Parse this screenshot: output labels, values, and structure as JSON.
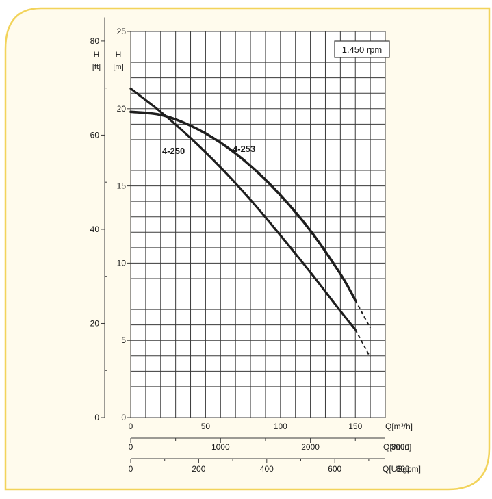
{
  "colors": {
    "frame_border": "#f2d35a",
    "frame_fill": "#fffbed",
    "plot_bg": "#ffffff",
    "grid": "#3a3a3a",
    "curve": "#1e1e1e",
    "text": "#1a1a1a"
  },
  "chart_data": {
    "type": "line",
    "speed_label": "1.450 rpm",
    "y_axis_m": {
      "label": "H",
      "unit": "[m]",
      "ylim": [
        0,
        25
      ],
      "ticks": [
        0,
        5,
        10,
        15,
        20,
        25
      ]
    },
    "y_axis_ft": {
      "label": "H",
      "unit": "[ft]",
      "ticks": [
        0,
        20,
        40,
        60,
        80
      ]
    },
    "x_axis_m3h": {
      "unit": "Q[m³/h]",
      "xlim": [
        0,
        170
      ],
      "ticks": [
        0,
        50,
        100,
        150
      ]
    },
    "x_axis_lmin": {
      "unit": "Q[l/min]",
      "ticks": [
        0,
        1000,
        2000,
        3000
      ]
    },
    "x_axis_usgpm": {
      "unit": "Q[USgpm]",
      "ticks": [
        0,
        200,
        400,
        600,
        800
      ]
    },
    "grid": true,
    "series": [
      {
        "name": "4-250",
        "x": [
          0,
          20,
          40,
          60,
          80,
          100,
          120,
          140,
          150
        ],
        "y": [
          21.3,
          19.8,
          18.1,
          16.2,
          14.1,
          11.8,
          9.4,
          6.9,
          5.7
        ],
        "extension_x": [
          150,
          160
        ],
        "extension_y": [
          5.7,
          3.9
        ]
      },
      {
        "name": "4-253",
        "x": [
          0,
          20,
          40,
          60,
          80,
          100,
          120,
          140,
          150
        ],
        "y": [
          19.8,
          19.6,
          18.9,
          17.8,
          16.3,
          14.4,
          12.1,
          9.3,
          7.6
        ],
        "extension_x": [
          150,
          160
        ],
        "extension_y": [
          7.6,
          5.8
        ]
      }
    ]
  }
}
